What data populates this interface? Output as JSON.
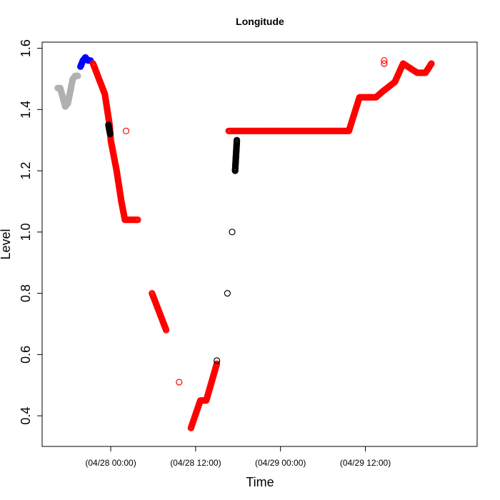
{
  "chart_data": {
    "type": "scatter",
    "title": "Longitude",
    "xlabel": "Time",
    "ylabel": "Level",
    "xlim": [
      "2024-04-27 14:18",
      "2024-04-30 03:48"
    ],
    "ylim": [
      0.3,
      1.62
    ],
    "x_ticks": [
      {
        "x": "2024-04-28 00:00",
        "label": "(04/28 00:00)"
      },
      {
        "x": "2024-04-28 12:00",
        "label": "(04/28 12:00)"
      },
      {
        "x": "2024-04-29 00:00",
        "label": "(04/29 00:00)"
      },
      {
        "x": "2024-04-29 12:00",
        "label": "(04/29 12:00)"
      }
    ],
    "y_ticks": [
      0.4,
      0.6,
      0.8,
      1.0,
      1.2,
      1.4,
      1.6
    ],
    "grid": false,
    "legend": "none",
    "marker": "open-circle",
    "series": [
      {
        "color": "#b0b0b0",
        "points": [
          [
            "2024-04-27 16:30",
            1.47
          ],
          [
            "2024-04-27 16:51",
            1.47
          ],
          [
            "2024-04-27 17:13",
            1.44
          ],
          [
            "2024-04-27 17:34",
            1.41
          ],
          [
            "2024-04-27 17:56",
            1.42
          ],
          [
            "2024-04-27 18:17",
            1.46
          ],
          [
            "2024-04-27 18:38",
            1.5
          ],
          [
            "2024-04-27 19:00",
            1.51
          ],
          [
            "2024-04-27 19:21",
            1.51
          ]
        ]
      },
      {
        "color": "#0000ff",
        "points": [
          [
            "2024-04-27 19:43",
            1.54
          ],
          [
            "2024-04-27 20:04",
            1.56
          ],
          [
            "2024-04-27 20:25",
            1.57
          ],
          [
            "2024-04-27 20:47",
            1.56
          ],
          [
            "2024-04-27 21:08",
            1.56
          ]
        ]
      },
      {
        "color": "#ff0000",
        "points": [
          [
            "2024-04-27 21:30",
            1.55
          ],
          [
            "2024-04-27 23:10",
            1.45
          ],
          [
            "2024-04-27 23:50",
            1.35
          ],
          [
            "2024-04-28 00:00",
            1.3
          ],
          [
            "2024-04-28 00:50",
            1.2
          ],
          [
            "2024-04-28 01:30",
            1.1
          ],
          [
            "2024-04-28 02:00",
            1.04
          ],
          [
            "2024-04-28 03:50",
            1.04
          ],
          [
            "2024-04-28 05:50",
            0.8
          ],
          [
            "2024-04-28 07:50",
            0.68
          ],
          [
            "2024-04-28 09:40",
            0.51
          ],
          [
            "2024-04-28 11:20",
            0.36
          ],
          [
            "2024-04-28 12:40",
            0.45
          ],
          [
            "2024-04-28 13:30",
            0.45
          ],
          [
            "2024-04-28 15:00",
            0.57
          ],
          [
            "2024-04-28 16:40",
            1.33
          ],
          [
            "2024-04-28 20:00",
            1.33
          ],
          [
            "2024-04-29 00:00",
            1.33
          ],
          [
            "2024-04-29 04:00",
            1.33
          ],
          [
            "2024-04-29 09:40",
            1.33
          ],
          [
            "2024-04-29 11:10",
            1.44
          ],
          [
            "2024-04-29 13:30",
            1.44
          ],
          [
            "2024-04-29 14:30",
            1.46
          ],
          [
            "2024-04-29 16:10",
            1.49
          ],
          [
            "2024-04-29 17:20",
            1.55
          ],
          [
            "2024-04-29 19:20",
            1.52
          ],
          [
            "2024-04-29 20:30",
            1.52
          ],
          [
            "2024-04-29 21:20",
            1.55
          ]
        ]
      },
      {
        "color": "#000000",
        "points": [
          [
            "2024-04-27 23:40",
            1.35
          ],
          [
            "2024-04-27 23:55",
            1.32
          ],
          [
            "2024-04-28 15:00",
            0.58
          ],
          [
            "2024-04-28 16:30",
            0.8
          ],
          [
            "2024-04-28 17:10",
            1.0
          ],
          [
            "2024-04-28 17:35",
            1.2
          ],
          [
            "2024-04-28 17:50",
            1.3
          ]
        ]
      },
      {
        "color": "#ff0000",
        "points": [
          [
            "2024-04-28 02:10",
            1.33
          ],
          [
            "2024-04-29 14:40",
            1.55
          ],
          [
            "2024-04-29 14:40",
            1.56
          ]
        ]
      }
    ]
  }
}
